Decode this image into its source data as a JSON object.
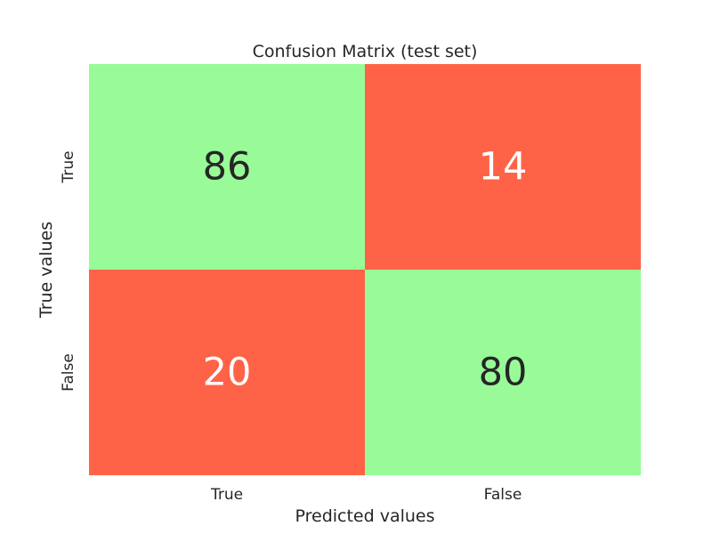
{
  "chart_data": {
    "type": "heatmap",
    "title": "Confusion Matrix (test set)",
    "xlabel": "Predicted values",
    "ylabel": "True values",
    "x_categories": [
      "True",
      "False"
    ],
    "y_categories": [
      "True",
      "False"
    ],
    "values": [
      [
        86,
        14
      ],
      [
        20,
        80
      ]
    ],
    "colors": {
      "diagonal": "#98fb98",
      "off_diagonal": "#ff6347",
      "text_on_light": "#262626",
      "text_on_dark": "#ffffff"
    },
    "grid": false,
    "legend": "none"
  }
}
